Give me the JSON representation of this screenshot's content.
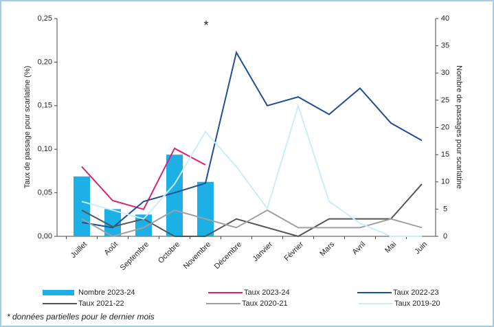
{
  "chart_data": {
    "type": "combo",
    "annotations": [
      "*",
      "* données partielles pour le dernier mois"
    ],
    "ylabel": "Taux de passage pour scarlatine (%)",
    "y2label": "Nombre de passages pour scarlatine",
    "categories": [
      "Juillet",
      "Août",
      "Septembre",
      "Octobre",
      "Novembre",
      "Décembre",
      "Janvier",
      "Février",
      "Mars",
      "Avril",
      "Mai",
      "Juin"
    ],
    "ylim": [
      0,
      0.25
    ],
    "yticks": [
      {
        "value": 0,
        "label": "0,00"
      },
      {
        "value": 0.05,
        "label": "0,05"
      },
      {
        "value": 0.1,
        "label": "0,10"
      },
      {
        "value": 0.15,
        "label": "0,15"
      },
      {
        "value": 0.2,
        "label": "0,20"
      },
      {
        "value": 0.25,
        "label": "0,25"
      }
    ],
    "y2lim": [
      0,
      40
    ],
    "y2ticks": [
      0,
      5,
      10,
      15,
      20,
      25,
      30,
      35,
      40
    ],
    "grid": false,
    "legend": "bottom",
    "series": [
      {
        "name": "Nombre 2023-24",
        "type": "bar",
        "axis": "y2",
        "color": "#1cb0e6",
        "values": [
          11,
          5,
          4,
          15,
          10,
          null,
          null,
          null,
          null,
          null,
          null,
          null
        ]
      },
      {
        "name": "Taux 2023-24",
        "type": "line",
        "color": "#e0206e",
        "values": [
          0.08,
          0.041,
          0.031,
          0.101,
          0.082,
          null,
          null,
          null,
          null,
          null,
          null,
          null
        ]
      },
      {
        "name": "Taux 2022-23",
        "type": "line",
        "color": "#1f4e96",
        "values": [
          0.016,
          0.01,
          0.04,
          0.05,
          0.061,
          0.211,
          0.15,
          0.16,
          0.14,
          0.17,
          0.13,
          0.11
        ]
      },
      {
        "name": "Taux 2021-22",
        "type": "line",
        "color": "#555555",
        "values": [
          0.03,
          0.011,
          0.02,
          0,
          0,
          0.02,
          0.01,
          0,
          0.02,
          0.02,
          0.02,
          0.06
        ]
      },
      {
        "name": "Taux 2020-21",
        "type": "line",
        "color": "#a0a0a0",
        "values": [
          0.02,
          0,
          0.01,
          0.03,
          0.02,
          0.01,
          0.03,
          0.01,
          0.01,
          0.01,
          0.02,
          0.01
        ]
      },
      {
        "name": "Taux 2019-20",
        "type": "line",
        "color": "#c8eefa",
        "values": [
          0.04,
          0.03,
          0.02,
          0.06,
          0.12,
          0.08,
          0.032,
          0.15,
          0.04,
          0.015,
          0,
          0
        ]
      }
    ]
  }
}
